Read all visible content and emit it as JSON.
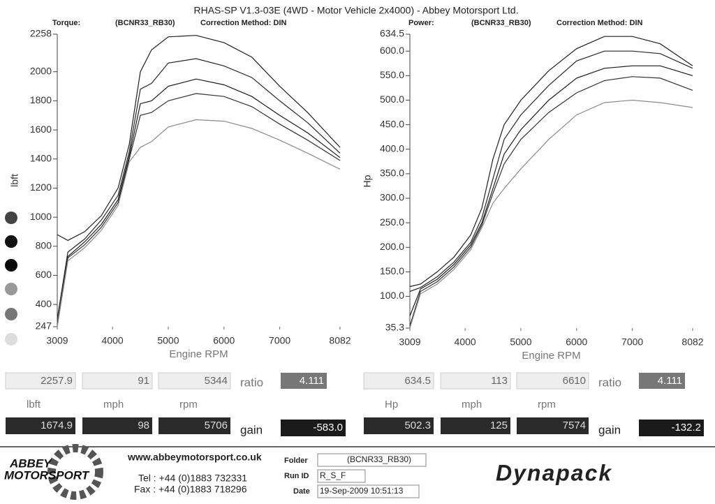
{
  "header": {
    "title": "RHAS-SP V1.3-03E  (4WD - Motor Vehicle 2x4000) - Abbey Motorsport Ltd.",
    "torque_label": "Torque:",
    "torque_vehicle": "(BCNR33_RB30)",
    "torque_correction": "Correction Method: DIN",
    "power_label": "Power:",
    "power_vehicle": "(BCNR33_RB30)",
    "power_correction": "Correction Method: DIN"
  },
  "chart_data": [
    {
      "type": "line",
      "y_label": "lbft",
      "x_label": "Engine RPM",
      "x": [
        3009,
        3200,
        3500,
        3800,
        4100,
        4300,
        4500,
        4700,
        5000,
        5500,
        6000,
        6500,
        7000,
        7500,
        8082
      ],
      "xlim": [
        3009,
        8082
      ],
      "xticks": [
        3009,
        4000,
        5000,
        6000,
        7000,
        8082
      ],
      "ylim": [
        247,
        2258
      ],
      "yticks": [
        247,
        400,
        600,
        800,
        1000,
        1200,
        1400,
        1600,
        1800,
        2000,
        2258
      ],
      "series": [
        {
          "color": "#1e1e1e",
          "values": [
            880,
            840,
            900,
            1010,
            1200,
            1500,
            2000,
            2150,
            2240,
            2250,
            2200,
            2100,
            1900,
            1720,
            1480
          ]
        },
        {
          "color": "#262626",
          "values": [
            300,
            760,
            850,
            980,
            1150,
            1450,
            1880,
            1920,
            2060,
            2090,
            2040,
            1960,
            1800,
            1650,
            1440
          ]
        },
        {
          "color": "#1a1a1a",
          "values": [
            250,
            730,
            830,
            950,
            1120,
            1420,
            1780,
            1800,
            1900,
            1950,
            1910,
            1830,
            1700,
            1580,
            1410
          ]
        },
        {
          "color": "#333333",
          "values": [
            260,
            720,
            810,
            930,
            1100,
            1400,
            1700,
            1720,
            1800,
            1850,
            1830,
            1760,
            1640,
            1530,
            1390
          ]
        },
        {
          "color": "#8a8a8a",
          "values": [
            247,
            700,
            790,
            910,
            1080,
            1380,
            1480,
            1520,
            1620,
            1670,
            1660,
            1610,
            1530,
            1440,
            1330
          ]
        }
      ]
    },
    {
      "type": "line",
      "y_label": "Hp",
      "x_label": "Engine RPM",
      "x": [
        3009,
        3200,
        3500,
        3800,
        4100,
        4300,
        4500,
        4700,
        5000,
        5500,
        6000,
        6500,
        7000,
        7500,
        8082
      ],
      "xlim": [
        3009,
        8082
      ],
      "xticks": [
        3009,
        4000,
        5000,
        6000,
        7000,
        8082
      ],
      "ylim": [
        35.3,
        634.5
      ],
      "yticks": [
        35.3,
        {
          "value": 100,
          "label": "100.0"
        },
        {
          "value": 150,
          "label": "150.0"
        },
        {
          "value": 200,
          "label": "200.0"
        },
        {
          "value": 250,
          "label": "250.0"
        },
        {
          "value": 300,
          "label": "300.0"
        },
        {
          "value": 350,
          "label": "350.0"
        },
        {
          "value": 400,
          "label": "400.0"
        },
        {
          "value": 450,
          "label": "450.0"
        },
        {
          "value": 500,
          "label": "500.0"
        },
        {
          "value": 550,
          "label": "550.0"
        },
        {
          "value": 600,
          "label": "600.0"
        },
        634.5
      ],
      "series": [
        {
          "color": "#1e1e1e",
          "values": [
            120,
            125,
            150,
            180,
            225,
            280,
            380,
            450,
            500,
            560,
            605,
            630,
            630,
            615,
            570
          ]
        },
        {
          "color": "#262626",
          "values": [
            110,
            118,
            140,
            170,
            210,
            260,
            340,
            420,
            470,
            530,
            580,
            600,
            600,
            595,
            565
          ]
        },
        {
          "color": "#1a1a1a",
          "values": [
            60,
            115,
            135,
            165,
            205,
            250,
            320,
            390,
            440,
            500,
            545,
            565,
            570,
            570,
            550
          ]
        },
        {
          "color": "#333333",
          "values": [
            40,
            110,
            130,
            160,
            200,
            245,
            310,
            370,
            420,
            475,
            515,
            540,
            548,
            545,
            520
          ]
        },
        {
          "color": "#8a8a8a",
          "values": [
            35.3,
            105,
            125,
            155,
            195,
            240,
            290,
            320,
            360,
            420,
            470,
            495,
            500,
            495,
            485
          ]
        }
      ]
    }
  ],
  "readouts": [
    {
      "max": [
        "2257.9",
        "91",
        "5344"
      ],
      "ratio_label": "ratio",
      "ratio": "4.111",
      "units": [
        "lbft",
        "mph",
        "rpm"
      ],
      "min": [
        "1674.9",
        "98",
        "5706"
      ],
      "gain_label": "gain",
      "gain": "-583.0"
    },
    {
      "max": [
        "634.5",
        "113",
        "6610"
      ],
      "ratio_label": "ratio",
      "ratio": "4.111",
      "units": [
        "Hp",
        "mph",
        "rpm"
      ],
      "min": [
        "502.3",
        "125",
        "7574"
      ],
      "gain_label": "gain",
      "gain": "-132.2"
    }
  ],
  "footer": {
    "website": "www.abbeymotorsport.co.uk",
    "tel": "Tel : +44 (0)1883 732331",
    "fax": "Fax : +44 (0)1883 718296",
    "folder_label": "Folder",
    "folder": "(BCNR33_RB30)",
    "run_label": "Run ID",
    "run": "R_S_F",
    "date_label": "Date",
    "date": "19-Sep-2009  10:51:13",
    "logo_top": "ABBEY",
    "logo_bottom": "MOTORSPORT",
    "brand": "Dynapack"
  }
}
